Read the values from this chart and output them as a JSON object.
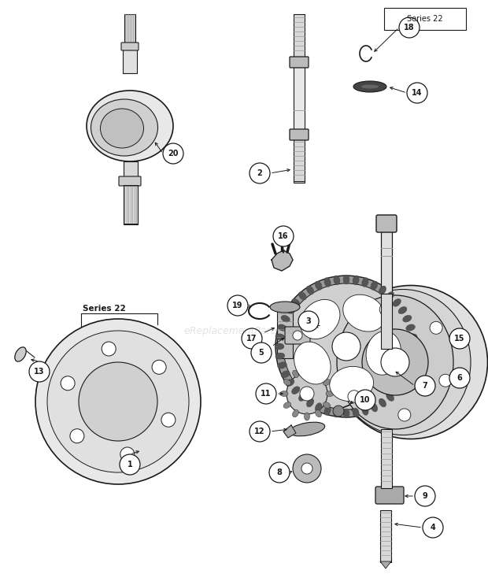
{
  "bg": "#ffffff",
  "lc": "#1a1a1a",
  "wm": "eReplacementParts.com",
  "figw": 6.2,
  "figh": 7.29,
  "dpi": 100
}
